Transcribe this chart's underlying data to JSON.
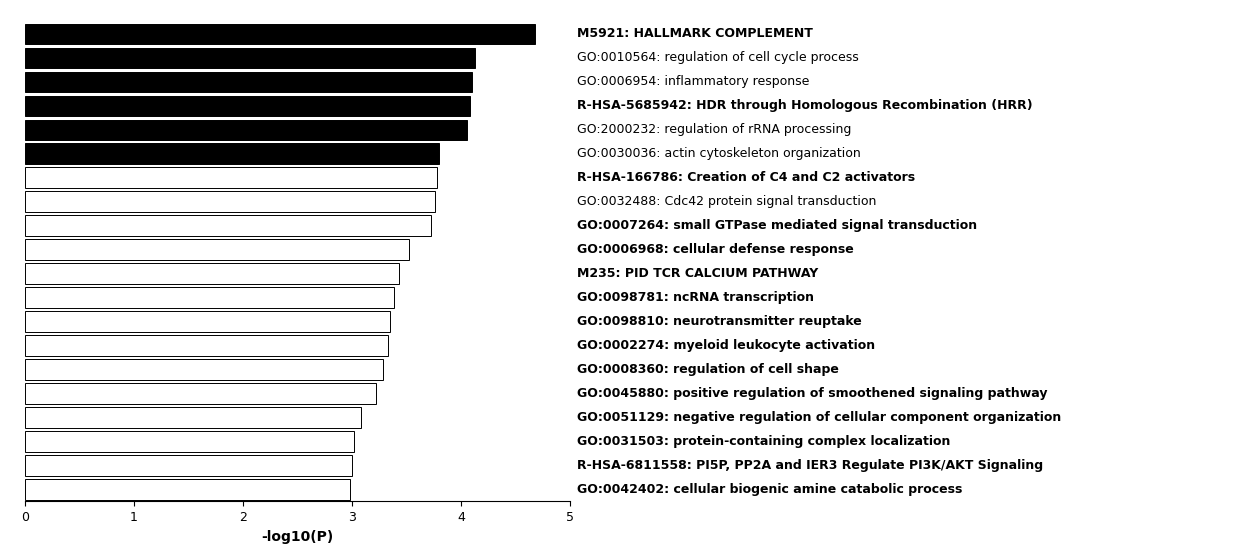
{
  "categories": [
    "GO:0042402: cellular biogenic amine catabolic process",
    "R-HSA-6811558: PI5P, PP2A and IER3 Regulate PI3K/AKT Signaling",
    "GO:0031503: protein-containing complex localization",
    "GO:0051129: negative regulation of cellular component organization",
    "GO:0045880: positive regulation of smoothened signaling pathway",
    "GO:0008360: regulation of cell shape",
    "GO:0002274: myeloid leukocyte activation",
    "GO:0098810: neurotransmitter reuptake",
    "GO:0098781: ncRNA transcription",
    "M235: PID TCR CALCIUM PATHWAY",
    "GO:0006968: cellular defense response",
    "GO:0007264: small GTPase mediated signal transduction",
    "GO:0032488: Cdc42 protein signal transduction",
    "R-HSA-166786: Creation of C4 and C2 activators",
    "GO:0030036: actin cytoskeleton organization",
    "GO:2000232: regulation of rRNA processing",
    "R-HSA-5685942: HDR through Homologous Recombination (HRR)",
    "GO:0006954: inflammatory response",
    "GO:0010564: regulation of cell cycle process",
    "M5921: HALLMARK COMPLEMENT"
  ],
  "values": [
    2.98,
    3.0,
    3.02,
    3.08,
    3.22,
    3.28,
    3.33,
    3.35,
    3.38,
    3.43,
    3.52,
    3.72,
    3.76,
    3.78,
    3.8,
    4.05,
    4.08,
    4.1,
    4.13,
    4.68
  ],
  "bar_colors": [
    "white",
    "white",
    "white",
    "white",
    "white",
    "white",
    "white",
    "white",
    "white",
    "white",
    "white",
    "white",
    "white",
    "white",
    "black",
    "black",
    "black",
    "black",
    "black",
    "black"
  ],
  "bold_labels": [
    "M5921: HALLMARK COMPLEMENT",
    "R-HSA-5685942: HDR through Homologous Recombination (HRR)",
    "R-HSA-166786: Creation of C4 and C2 activators",
    "M235: PID TCR CALCIUM PATHWAY",
    "GO:0098810: neurotransmitter reuptake",
    "GO:0002274: myeloid leukocyte activation",
    "GO:0007264: small GTPase mediated signal transduction",
    "GO:0006968: cellular defense response",
    "GO:0098781: ncRNA transcription",
    "GO:0008360: regulation of cell shape",
    "GO:0045880: positive regulation of smoothened signaling pathway",
    "GO:0051129: negative regulation of cellular component organization",
    "GO:0031503: protein-containing complex localization",
    "R-HSA-6811558: PI5P, PP2A and IER3 Regulate PI3K/AKT Signaling",
    "GO:0042402: cellular biogenic amine catabolic process"
  ],
  "xlabel": "-log10(P)",
  "xlim": [
    0,
    5
  ],
  "xticks": [
    0,
    1,
    2,
    3,
    4,
    5
  ],
  "background_color": "white",
  "bar_edgecolor": "black",
  "label_fontsize": 9,
  "xlabel_fontsize": 10
}
